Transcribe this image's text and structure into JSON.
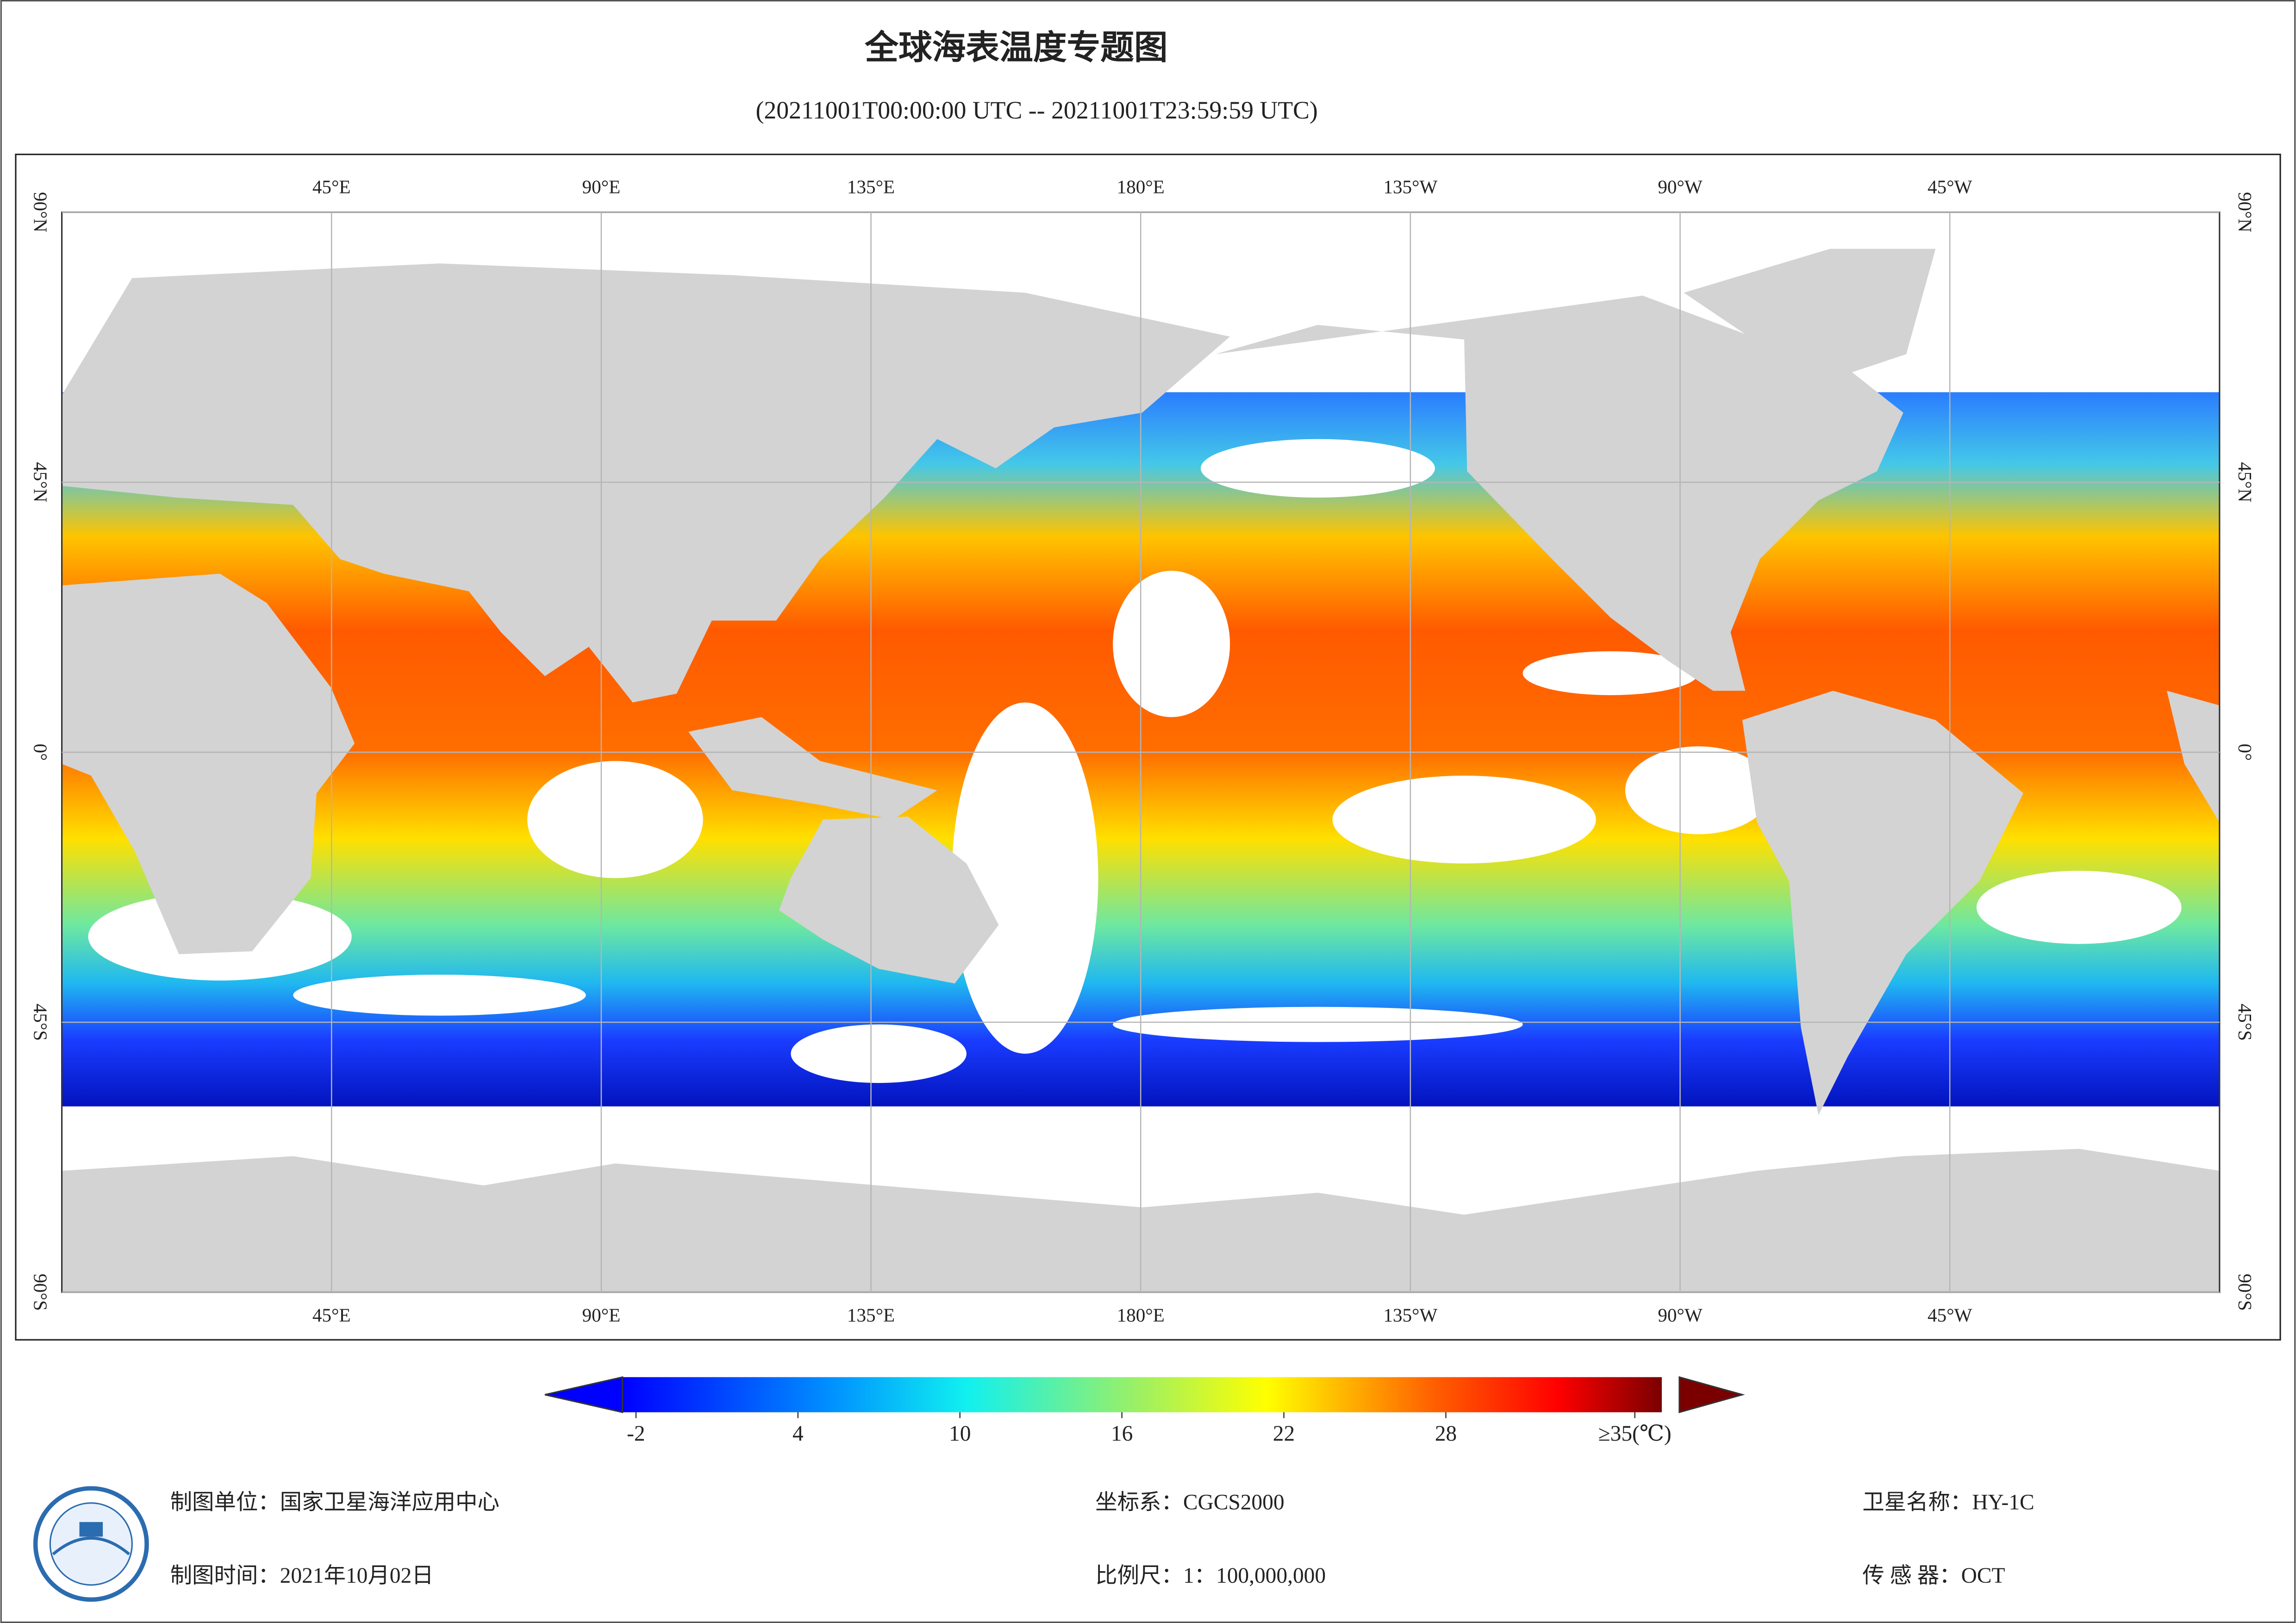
{
  "title": "全球海表温度专题图",
  "subtitle": "(20211001T00:00:00 UTC -- 20211001T23:59:59 UTC)",
  "map": {
    "xlim": [
      0,
      360
    ],
    "ylim": [
      -90,
      90
    ],
    "lon_ticks": [
      {
        "value": 45,
        "label": "45°E"
      },
      {
        "value": 90,
        "label": "90°E"
      },
      {
        "value": 135,
        "label": "135°E"
      },
      {
        "value": 180,
        "label": "180°E"
      },
      {
        "value": 225,
        "label": "135°W"
      },
      {
        "value": 270,
        "label": "90°W"
      },
      {
        "value": 315,
        "label": "45°W"
      }
    ],
    "lat_ticks": [
      {
        "value": 90,
        "label": "90°N"
      },
      {
        "value": 45,
        "label": "45°N"
      },
      {
        "value": 0,
        "label": "0°"
      },
      {
        "value": -45,
        "label": "45°S"
      },
      {
        "value": -90,
        "label": "90°S"
      }
    ]
  },
  "colorbar": {
    "range": [
      -2.5,
      36
    ],
    "ticks": [
      -2,
      4,
      10,
      16,
      22,
      28,
      {
        "value": 35,
        "label": "≥35(℃)"
      }
    ]
  },
  "footer": {
    "unit": "制图单位：国家卫星海洋应用中心",
    "time": "制图时间：2021年10月02日",
    "crs": "坐标系：CGCS2000",
    "scale": "比例尺：1：100,000,000",
    "satellite": "卫星名称：HY-1C",
    "sensor": "传 感 器：OCT"
  }
}
